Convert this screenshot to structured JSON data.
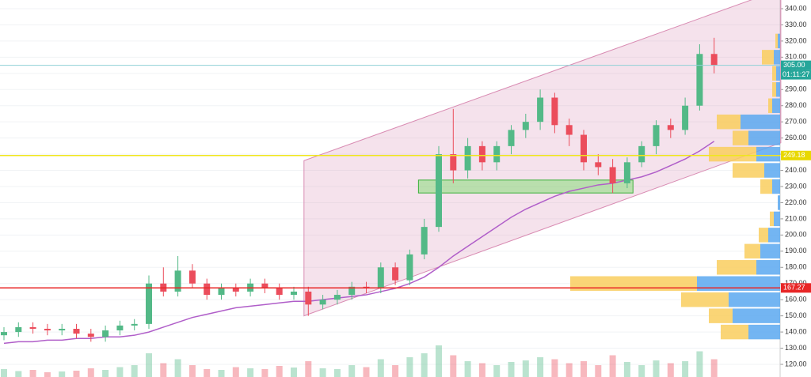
{
  "chart_data": {
    "type": "candlestick",
    "up_color": "#53b987",
    "down_color": "#eb4d5c",
    "ylim": [
      120,
      340
    ],
    "yticks": [
      {
        "value": 120,
        "label": "120.00"
      },
      {
        "value": 130,
        "label": "130.00"
      },
      {
        "value": 140,
        "label": "140.00"
      },
      {
        "value": 150,
        "label": "150.00"
      },
      {
        "value": 160,
        "label": "160.00"
      },
      {
        "value": 170,
        "label": "170.00"
      },
      {
        "value": 180,
        "label": "180.00"
      },
      {
        "value": 190,
        "label": "190.00"
      },
      {
        "value": 200,
        "label": "200.00"
      },
      {
        "value": 210,
        "label": "210.00"
      },
      {
        "value": 220,
        "label": "220.00"
      },
      {
        "value": 230,
        "label": "230.00"
      },
      {
        "value": 240,
        "label": "240.00"
      },
      {
        "value": 250,
        "label": "250.00"
      },
      {
        "value": 260,
        "label": "260.00"
      },
      {
        "value": 270,
        "label": "270.00"
      },
      {
        "value": 280,
        "label": "280.00"
      },
      {
        "value": 290,
        "label": "290.00"
      },
      {
        "value": 300,
        "label": "300.00"
      },
      {
        "value": 310,
        "label": "310.00"
      },
      {
        "value": 320,
        "label": "320.00"
      },
      {
        "value": 330,
        "label": "330.00"
      },
      {
        "value": 340,
        "label": "340.00"
      }
    ],
    "open": [
      138,
      140,
      143,
      142,
      141,
      142,
      139,
      137,
      141,
      144,
      145,
      170,
      165,
      178,
      170,
      163,
      167,
      165,
      170,
      167,
      163,
      165,
      157,
      160,
      163,
      168,
      167,
      180,
      172,
      188,
      205,
      250,
      240,
      255,
      245,
      255,
      265,
      270,
      285,
      268,
      262,
      245,
      242,
      232,
      245,
      255,
      268,
      265,
      280,
      312
    ],
    "high": [
      143,
      146,
      146,
      145,
      145,
      145,
      142,
      144,
      147,
      148,
      175,
      180,
      187,
      182,
      173,
      170,
      170,
      173,
      173,
      170,
      168,
      168,
      163,
      166,
      171,
      171,
      183,
      183,
      191,
      210,
      255,
      278,
      260,
      258,
      258,
      268,
      275,
      290,
      288,
      272,
      265,
      250,
      247,
      248,
      258,
      271,
      272,
      285,
      318,
      322
    ],
    "low": [
      135,
      137,
      139,
      138,
      138,
      136,
      134,
      134,
      138,
      141,
      142,
      162,
      162,
      167,
      160,
      160,
      162,
      162,
      164,
      160,
      160,
      150,
      154,
      157,
      160,
      164,
      164,
      169,
      169,
      185,
      202,
      232,
      235,
      240,
      240,
      250,
      260,
      265,
      263,
      255,
      240,
      237,
      226,
      229,
      242,
      250,
      260,
      262,
      277,
      300
    ],
    "close": [
      140,
      143,
      142,
      141,
      142,
      139,
      137,
      141,
      144,
      145,
      170,
      165,
      178,
      170,
      163,
      167,
      165,
      170,
      167,
      163,
      165,
      157,
      160,
      163,
      168,
      167,
      180,
      172,
      188,
      205,
      250,
      240,
      255,
      245,
      255,
      265,
      270,
      285,
      268,
      262,
      245,
      242,
      232,
      245,
      255,
      268,
      265,
      280,
      312,
      305
    ],
    "volume": [
      20,
      15,
      18,
      12,
      14,
      16,
      22,
      18,
      25,
      30,
      60,
      35,
      45,
      30,
      20,
      18,
      25,
      22,
      20,
      28,
      24,
      40,
      22,
      20,
      30,
      25,
      45,
      30,
      50,
      60,
      80,
      55,
      40,
      35,
      30,
      38,
      42,
      50,
      45,
      35,
      40,
      30,
      55,
      38,
      30,
      42,
      35,
      40,
      65,
      45
    ],
    "moving_average": {
      "color": "#b05ec9",
      "values": [
        133,
        134,
        134,
        135,
        135,
        136,
        136,
        137,
        137,
        138,
        140,
        143,
        146,
        149,
        151,
        153,
        155,
        156,
        157,
        158,
        159,
        159,
        160,
        161,
        162,
        163,
        165,
        167,
        170,
        174,
        180,
        187,
        193,
        199,
        205,
        211,
        216,
        220,
        224,
        227,
        229,
        231,
        232,
        234,
        236,
        239,
        243,
        247,
        252,
        258
      ]
    },
    "channel": {
      "x": [
        20.7,
        53.6
      ],
      "upper": [
        246,
        352
      ],
      "lower": [
        150,
        257
      ],
      "color": "#d98cb3"
    },
    "zone": {
      "x": [
        28.6,
        43.4
      ],
      "low": 226,
      "high": 234,
      "color": "#7ddc6e"
    },
    "price_lines": [
      {
        "value": 305,
        "label": "305.00",
        "color": "#8fd0d6",
        "tag_color": "#26a69a"
      },
      {
        "value": 249.18,
        "label": "249.18",
        "color": "#f0e61c",
        "tag_color": "#e8d800"
      },
      {
        "value": 167.27,
        "label": "167.27",
        "color": "#e82626",
        "tag_color": "#e82626"
      }
    ],
    "countdown": "01:11:27",
    "volume_profile": {
      "levels": [
        140,
        150,
        160,
        170,
        180,
        190,
        200,
        210,
        220,
        230,
        240,
        250,
        260,
        270,
        280,
        290,
        300,
        310,
        320
      ],
      "up": [
        40,
        60,
        65,
        105,
        30,
        25,
        15,
        8,
        3,
        10,
        20,
        30,
        40,
        50,
        10,
        5,
        5,
        8,
        3
      ],
      "down": [
        35,
        30,
        60,
        160,
        50,
        20,
        12,
        5,
        0,
        15,
        40,
        60,
        20,
        30,
        5,
        5,
        5,
        15,
        3
      ],
      "up_color": "#5aa8f0",
      "down_color": "#f9ce5e"
    }
  }
}
